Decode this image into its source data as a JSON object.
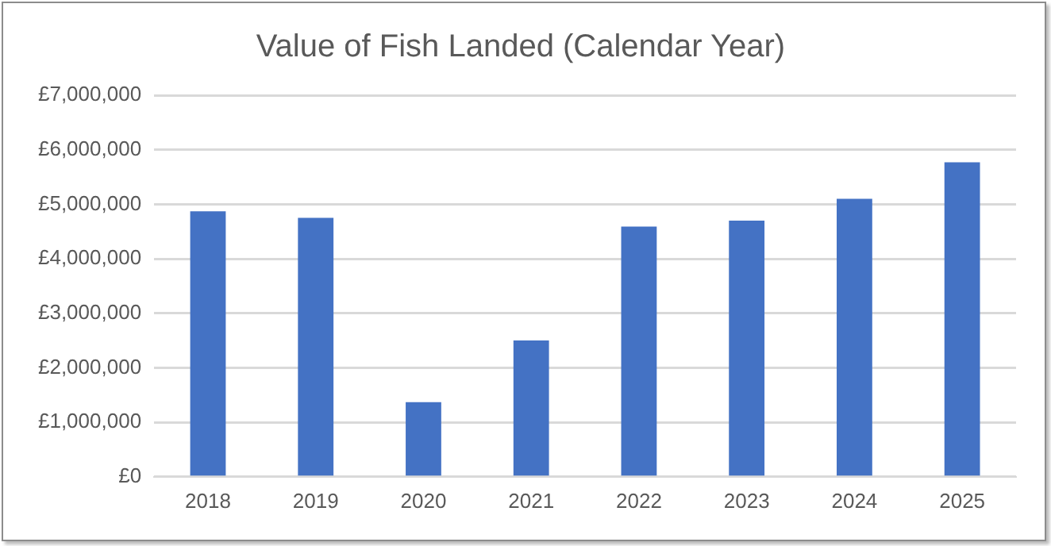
{
  "chart_data": {
    "type": "bar",
    "title": "Value of Fish Landed (Calendar Year)",
    "categories": [
      "2018",
      "2019",
      "2020",
      "2021",
      "2022",
      "2023",
      "2024",
      "2025"
    ],
    "values": [
      4870000,
      4750000,
      1370000,
      2500000,
      4590000,
      4700000,
      5100000,
      5770000
    ],
    "color": "#4472c4",
    "ylim": [
      0,
      7000000
    ],
    "yticks": [
      {
        "value": 0,
        "label": "£0"
      },
      {
        "value": 1000000,
        "label": "£1,000,000"
      },
      {
        "value": 2000000,
        "label": "£2,000,000"
      },
      {
        "value": 3000000,
        "label": "£3,000,000"
      },
      {
        "value": 4000000,
        "label": "£4,000,000"
      },
      {
        "value": 5000000,
        "label": "£5,000,000"
      },
      {
        "value": 6000000,
        "label": "£6,000,000"
      },
      {
        "value": 7000000,
        "label": "£7,000,000"
      }
    ],
    "grid": true
  }
}
